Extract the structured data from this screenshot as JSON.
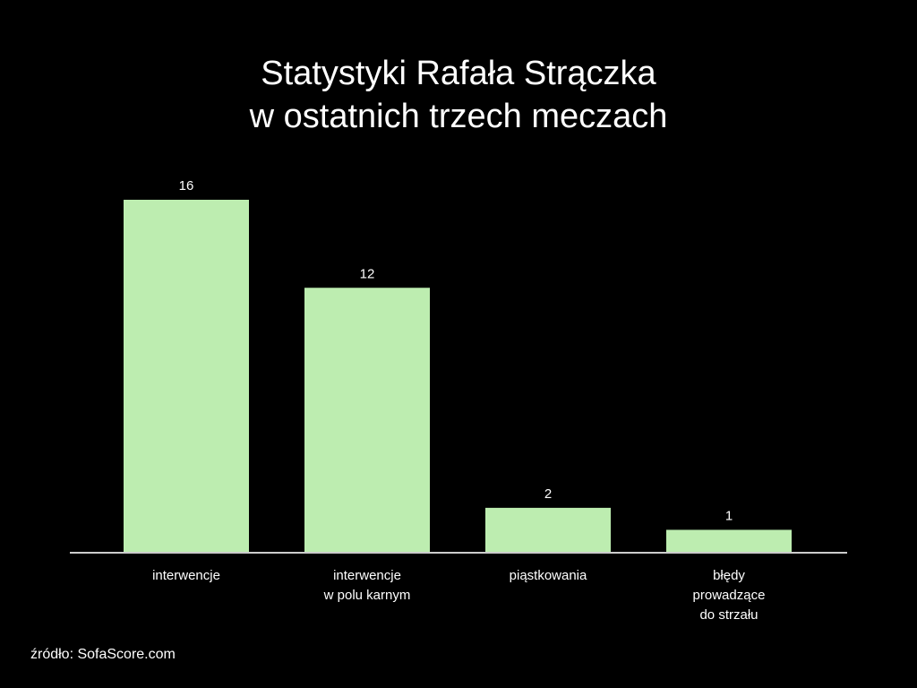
{
  "chart_data": {
    "type": "bar",
    "title_lines": [
      "Statystyki Rafała Strączka",
      "w ostatnich trzech meczach"
    ],
    "categories": [
      [
        "interwencje"
      ],
      [
        "interwencje",
        "w polu karnym"
      ],
      [
        "piąstkowania"
      ],
      [
        "błędy",
        "prowadzące",
        "do strzału"
      ]
    ],
    "values": [
      16,
      12,
      2,
      1
    ],
    "data_labels": [
      "16",
      "12",
      "2",
      "1"
    ],
    "ylim": [
      0,
      16
    ],
    "grid": false,
    "legend": "none",
    "bar_color": "#bdedb0",
    "axis_color": "#cccccc",
    "background": "#000000"
  },
  "source_note": "źródło: SofaScore.com"
}
